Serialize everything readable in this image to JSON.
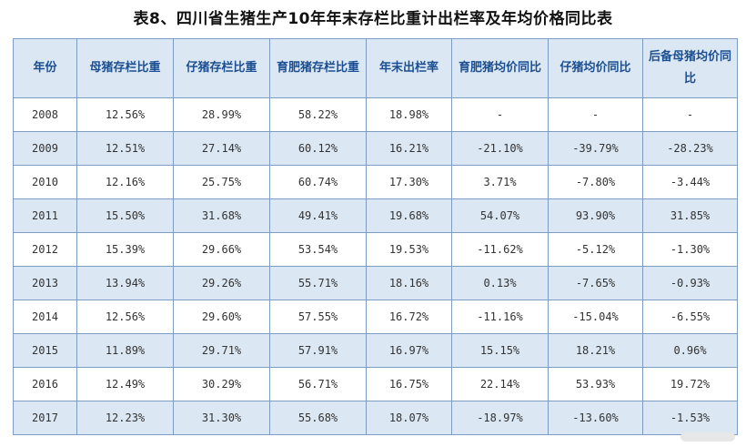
{
  "title": "表8、四川省生猪生产10年年末存栏比重计出栏率及年均价格同比表",
  "headers": [
    "年份",
    "母猪存栏比重",
    "仔猪存栏比重",
    "育肥猪存栏比重",
    "年末出栏率",
    "育肥猪均价同比",
    "仔猪均价同比",
    "后备母猪均价同比"
  ],
  "colors": {
    "header_bg": "#dbe7f3",
    "header_text": "#1c4f91",
    "border": "#7d9cc4",
    "red": "#d23b3b",
    "blue": "#2a8bd8"
  },
  "rows": [
    [
      "2008",
      "12.56%",
      "28.99%",
      "58.22%",
      "18.98%",
      "-",
      "-",
      "-"
    ],
    [
      "2009",
      "12.51%",
      "27.14%",
      "60.12%",
      "16.21%",
      "-21.10%",
      "-39.79%",
      "-28.23%"
    ],
    [
      "2010",
      "12.16%",
      "25.75%",
      "60.74%",
      "17.30%",
      "3.71%",
      "-7.80%",
      "-3.44%"
    ],
    [
      "2011",
      "15.50%",
      "31.68%",
      "49.41%",
      "19.68%",
      "54.07%",
      "93.90%",
      "31.85%"
    ],
    [
      "2012",
      "15.39%",
      "29.66%",
      "53.54%",
      "19.53%",
      "-11.62%",
      "-5.12%",
      "-1.30%"
    ],
    [
      "2013",
      "13.94%",
      "29.26%",
      "55.71%",
      "18.16%",
      "0.13%",
      "-7.65%",
      "-0.93%"
    ],
    [
      "2014",
      "12.56%",
      "29.60%",
      "57.55%",
      "16.72%",
      "-11.16%",
      "-15.04%",
      "-6.55%"
    ],
    [
      "2015",
      "11.89%",
      "29.71%",
      "57.91%",
      "16.97%",
      "15.15%",
      "18.21%",
      "0.96%"
    ],
    [
      "2016",
      "12.49%",
      "30.29%",
      "56.71%",
      "16.75%",
      "22.14%",
      "53.93%",
      "19.72%"
    ],
    [
      "2017",
      "12.23%",
      "31.30%",
      "55.68%",
      "18.07%",
      "-18.97%",
      "-13.60%",
      "-1.53%"
    ]
  ],
  "highlights": {
    "1": {
      "4": "blue",
      "5": "red",
      "6": "red",
      "7": "red"
    },
    "2": {
      "2": "blue",
      "3": "red",
      "6": "red",
      "7": "red"
    },
    "3": {
      "1": "red",
      "2": "red",
      "3": "blue",
      "4": "red"
    },
    "4": {
      "5": "red",
      "6": "red",
      "7": "red"
    },
    "5": {
      "6": "red",
      "7": "red"
    },
    "6": {
      "5": "red",
      "6": "red",
      "7": "red"
    },
    "7": {
      "1": "blue"
    },
    "9": {
      "5": "red",
      "6": "red",
      "7": "red"
    }
  }
}
